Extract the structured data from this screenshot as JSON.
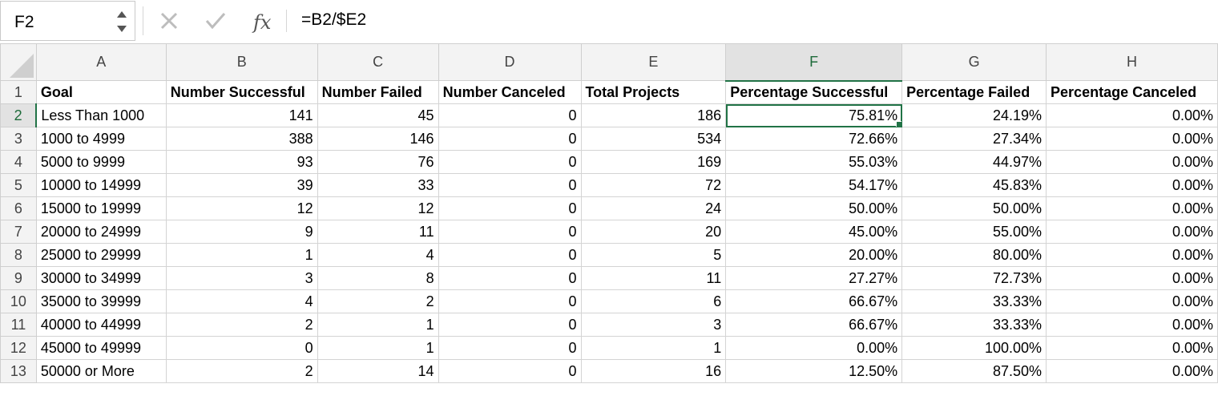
{
  "formula_bar": {
    "name_box": "F2",
    "formula": "=B2/$E2"
  },
  "columns": [
    "A",
    "B",
    "C",
    "D",
    "E",
    "F",
    "G",
    "H"
  ],
  "selected_column": "F",
  "rows": [
    {
      "n": "1",
      "cells": [
        "Goal",
        "Number Successful",
        "Number Failed",
        "Number Canceled",
        "Total Projects",
        "Percentage Successful",
        "Percentage Failed",
        "Percentage Canceled"
      ]
    },
    {
      "n": "2",
      "cells": [
        "Less Than 1000",
        "141",
        "45",
        "0",
        "186",
        "75.81%",
        "24.19%",
        "0.00%"
      ]
    },
    {
      "n": "3",
      "cells": [
        "1000 to 4999",
        "388",
        "146",
        "0",
        "534",
        "72.66%",
        "27.34%",
        "0.00%"
      ]
    },
    {
      "n": "4",
      "cells": [
        "5000 to 9999",
        "93",
        "76",
        "0",
        "169",
        "55.03%",
        "44.97%",
        "0.00%"
      ]
    },
    {
      "n": "5",
      "cells": [
        "10000 to 14999",
        "39",
        "33",
        "0",
        "72",
        "54.17%",
        "45.83%",
        "0.00%"
      ]
    },
    {
      "n": "6",
      "cells": [
        "15000 to 19999",
        "12",
        "12",
        "0",
        "24",
        "50.00%",
        "50.00%",
        "0.00%"
      ]
    },
    {
      "n": "7",
      "cells": [
        "20000 to 24999",
        "9",
        "11",
        "0",
        "20",
        "45.00%",
        "55.00%",
        "0.00%"
      ]
    },
    {
      "n": "8",
      "cells": [
        "25000 to 29999",
        "1",
        "4",
        "0",
        "5",
        "20.00%",
        "80.00%",
        "0.00%"
      ]
    },
    {
      "n": "9",
      "cells": [
        "30000 to 34999",
        "3",
        "8",
        "0",
        "11",
        "27.27%",
        "72.73%",
        "0.00%"
      ]
    },
    {
      "n": "10",
      "cells": [
        "35000 to 39999",
        "4",
        "2",
        "0",
        "6",
        "66.67%",
        "33.33%",
        "0.00%"
      ]
    },
    {
      "n": "11",
      "cells": [
        "40000 to 44999",
        "2",
        "1",
        "0",
        "3",
        "66.67%",
        "33.33%",
        "0.00%"
      ]
    },
    {
      "n": "12",
      "cells": [
        "45000 to 49999",
        "0",
        "1",
        "0",
        "1",
        "0.00%",
        "100.00%",
        "0.00%"
      ]
    },
    {
      "n": "13",
      "cells": [
        "50000 or More",
        "2",
        "14",
        "0",
        "16",
        "12.50%",
        "87.50%",
        "0.00%"
      ]
    }
  ],
  "active_cell": {
    "row": "2",
    "col": "F"
  },
  "colors": {
    "accent": "#217346"
  }
}
